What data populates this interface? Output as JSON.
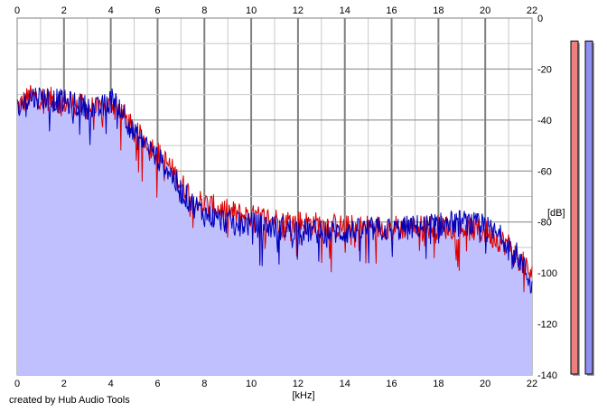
{
  "credit": "created by Hub Audio Tools",
  "chart_data": {
    "type": "area",
    "xlabel": "[kHz]",
    "ylabel": "[dB]",
    "xlim": [
      0,
      22
    ],
    "ylim": [
      -140,
      0
    ],
    "x_ticks": [
      0,
      2,
      4,
      6,
      8,
      10,
      12,
      14,
      16,
      18,
      20,
      22
    ],
    "y_ticks": [
      0,
      -20,
      -40,
      -60,
      -80,
      -100,
      -120,
      -140
    ],
    "grid": true,
    "colors": {
      "fill": "#c0c0ff",
      "left_channel": "#dd0000",
      "right_channel": "#0000bb",
      "grid_minor": "#c8c8c8",
      "grid_major": "#808080",
      "meter_left": "#f08080",
      "meter_right": "#9090f0"
    },
    "series": [
      {
        "color": "#dd0000",
        "envelope_x": [
          0,
          0.5,
          1.0,
          2.0,
          3.0,
          3.5,
          4.2,
          4.7,
          5.0,
          5.5,
          6.0,
          6.5,
          7.0,
          7.5,
          8.0,
          9.0,
          10.0,
          11.0,
          12.0,
          13.0,
          14.0,
          15.0,
          16.0,
          17.0,
          18.0,
          19.0,
          20.0,
          21.0,
          21.5,
          22.0
        ],
        "envelope_y": [
          -35,
          -31,
          -31,
          -33,
          -35,
          -36,
          -33,
          -40,
          -45,
          -48,
          -53,
          -58,
          -65,
          -70,
          -73,
          -76,
          -78,
          -79,
          -80,
          -81,
          -82,
          -82,
          -82,
          -82,
          -82,
          -82,
          -84,
          -89,
          -95,
          -101
        ]
      },
      {
        "color": "#0000bb",
        "envelope_x": [
          0,
          0.5,
          1.0,
          2.0,
          3.0,
          3.5,
          4.2,
          4.7,
          5.0,
          5.5,
          6.0,
          6.5,
          7.0,
          7.5,
          8.0,
          9.0,
          10.0,
          11.0,
          12.0,
          13.0,
          14.0,
          15.0,
          16.0,
          17.0,
          18.0,
          19.0,
          20.0,
          21.0,
          21.5,
          22.0
        ],
        "envelope_y": [
          -36,
          -31,
          -31,
          -33,
          -35,
          -36,
          -31,
          -40,
          -46,
          -49,
          -55,
          -60,
          -68,
          -73,
          -77,
          -80,
          -81,
          -82,
          -83,
          -84,
          -84,
          -83,
          -83,
          -82,
          -81,
          -80,
          -82,
          -88,
          -95,
          -105
        ]
      }
    ],
    "level_meters": [
      {
        "channel": "left",
        "color": "#f08080",
        "level": 0.97
      },
      {
        "channel": "right",
        "color": "#9090f0",
        "level": 0.97
      }
    ]
  }
}
